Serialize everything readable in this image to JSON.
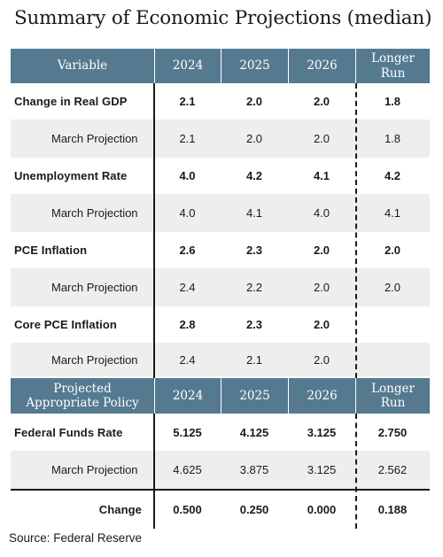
{
  "title": "Summary of Economic Projections (median)",
  "header1": {
    "variable": "Variable",
    "y2024": "2024",
    "y2025": "2025",
    "y2026": "2026",
    "longer_line1": "Longer",
    "longer_line2": "Run"
  },
  "rows1": [
    {
      "label": "Change in Real GDP",
      "v2024": "2.1",
      "v2025": "2.0",
      "v2026": "2.0",
      "longer": "1.8"
    },
    {
      "label": "March Projection",
      "v2024": "2.1",
      "v2025": "2.0",
      "v2026": "2.0",
      "longer": "1.8"
    },
    {
      "label": "Unemployment Rate",
      "v2024": "4.0",
      "v2025": "4.2",
      "v2026": "4.1",
      "longer": "4.2"
    },
    {
      "label": "March Projection",
      "v2024": "4.0",
      "v2025": "4.1",
      "v2026": "4.0",
      "longer": "4.1"
    },
    {
      "label": "PCE Inflation",
      "v2024": "2.6",
      "v2025": "2.3",
      "v2026": "2.0",
      "longer": "2.0"
    },
    {
      "label": "March Projection",
      "v2024": "2.4",
      "v2025": "2.2",
      "v2026": "2.0",
      "longer": "2.0"
    },
    {
      "label": "Core PCE Inflation",
      "v2024": "2.8",
      "v2025": "2.3",
      "v2026": "2.0",
      "longer": ""
    },
    {
      "label": "March Projection",
      "v2024": "2.4",
      "v2025": "2.1",
      "v2026": "2.0",
      "longer": ""
    }
  ],
  "header2": {
    "variable_line1": "Projected",
    "variable_line2": "Appropriate Policy",
    "y2024": "2024",
    "y2025": "2025",
    "y2026": "2026",
    "longer_line1": "Longer",
    "longer_line2": "Run"
  },
  "rows2": [
    {
      "label": "Federal Funds Rate",
      "v2024": "5.125",
      "v2025": "4.125",
      "v2026": "3.125",
      "longer": "2.750"
    },
    {
      "label": "March Projection",
      "v2024": "4.625",
      "v2025": "3.875",
      "v2026": "3.125",
      "longer": "2.562"
    }
  ],
  "change_row": {
    "label": "Change",
    "v2024": "0.500",
    "v2025": "0.250",
    "v2026": "0.000",
    "longer": "0.188"
  },
  "source": "Source: Federal Reserve",
  "colors": {
    "header_bg": "#557a90",
    "alt_row_bg": "#eeeeee",
    "rule": "#1a1a1a"
  }
}
